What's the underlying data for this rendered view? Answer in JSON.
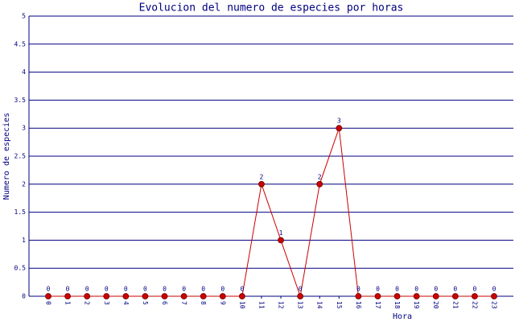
{
  "chart_data": {
    "type": "line",
    "title": "Evolucion del numero de especies por horas",
    "x_label": "Hora",
    "y_label": "Numero de especies",
    "categories": [
      "0",
      "1",
      "2",
      "3",
      "4",
      "5",
      "6",
      "7",
      "8",
      "9",
      "10",
      "11",
      "12",
      "13",
      "14",
      "15",
      "16",
      "17",
      "18",
      "19",
      "20",
      "21",
      "22",
      "23"
    ],
    "values": [
      0,
      0,
      0,
      0,
      0,
      0,
      0,
      0,
      0,
      0,
      0,
      2,
      1,
      0,
      2,
      3,
      0,
      0,
      0,
      0,
      0,
      0,
      0,
      0
    ],
    "color": "#cc0000",
    "ylim": [
      0,
      5
    ],
    "yticks": [
      0,
      0.5,
      1,
      1.5,
      2,
      2.5,
      3,
      3.5,
      4,
      4.5,
      5
    ],
    "grid": true
  }
}
